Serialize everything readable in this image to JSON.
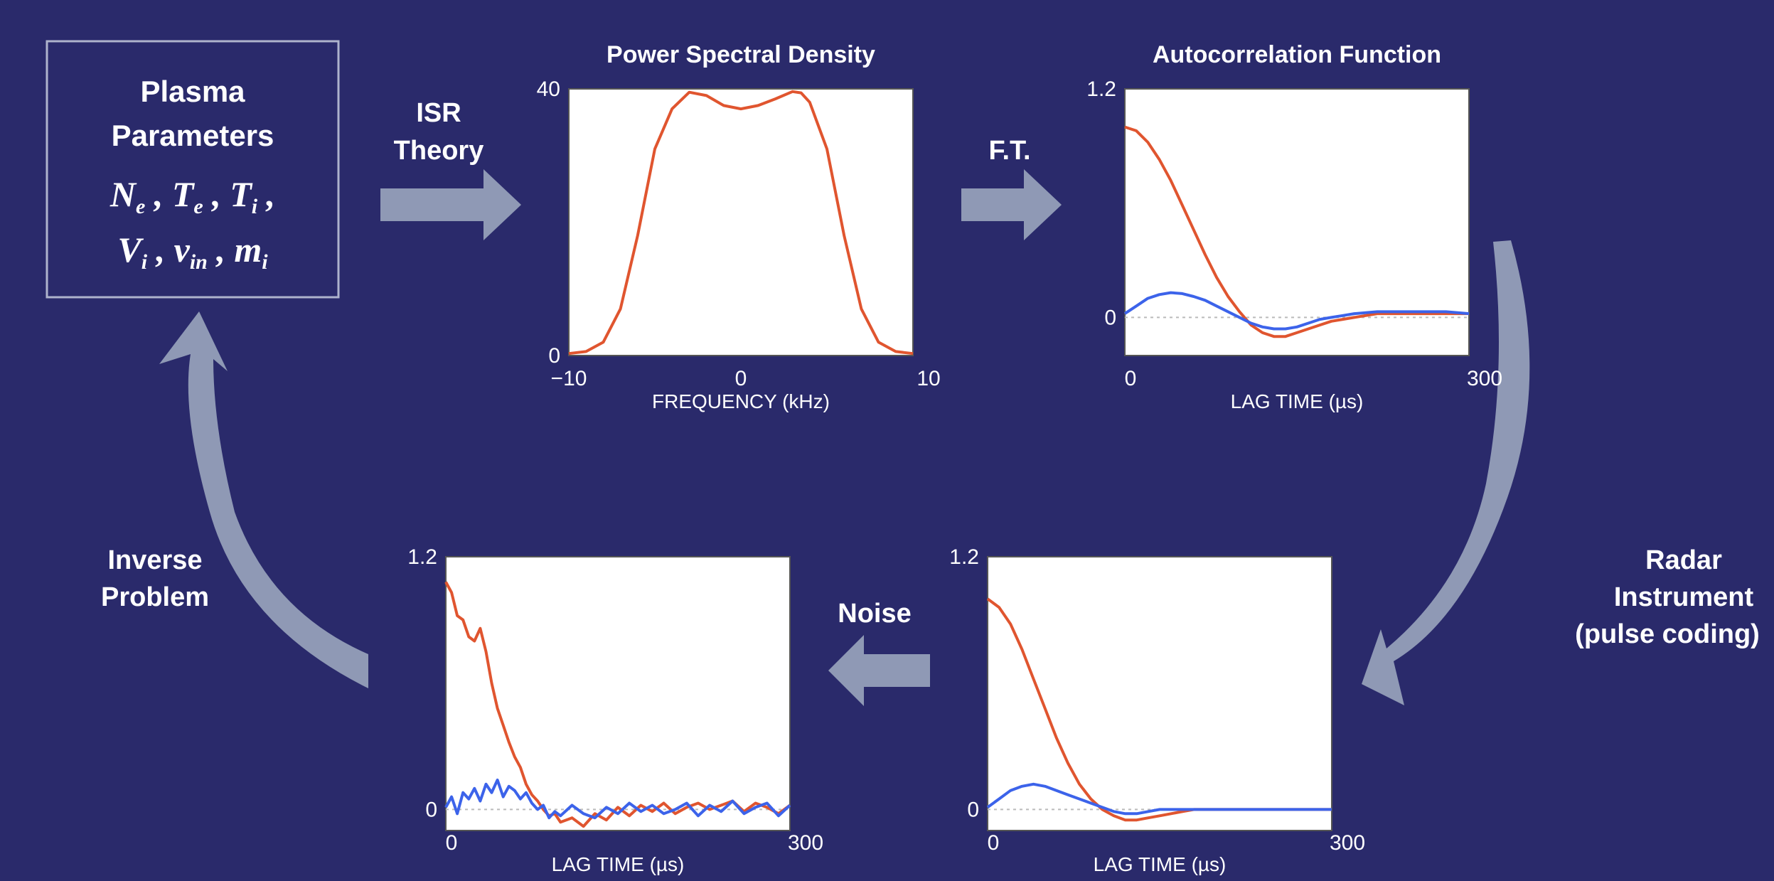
{
  "colors": {
    "background": "#2a2a6b",
    "arrow": "#8f99b5",
    "real_part": "#e0552f",
    "imag_part": "#3c63ea",
    "zero_line": "#bbbbbb",
    "plot_bg": "#ffffff",
    "text": "#ffffff"
  },
  "params_box": {
    "title_line1": "Plasma",
    "title_line2": "Parameters"
  },
  "labels": {
    "isr_theory_line1": "ISR",
    "isr_theory_line2": "Theory",
    "ft": "F.T.",
    "radar_line1": "Radar",
    "radar_line2": "Instrument",
    "radar_line3": "(pulse coding)",
    "noise": "Noise",
    "inverse_line1": "Inverse",
    "inverse_line2": "Problem"
  },
  "arrow_icons": [
    "arrow-right-icon",
    "arrow-right-icon",
    "curved-arrow-down-icon",
    "arrow-left-icon",
    "curved-arrow-up-icon"
  ],
  "chart_data": [
    {
      "id": "psd",
      "type": "line",
      "title": "Power Spectral Density",
      "xlabel": "FREQUENCY (kHz)",
      "ylabel": "",
      "xlim": [
        -10,
        10
      ],
      "ylim": [
        0,
        40
      ],
      "xticks": [
        "−10",
        "0",
        "10"
      ],
      "yticks": [
        "0",
        "40"
      ],
      "series": [
        {
          "color": "real",
          "x": [
            -10,
            -9,
            -8,
            -7,
            -6,
            -5,
            -4,
            -3,
            -2,
            -1,
            0,
            1,
            2,
            3,
            3.5,
            4,
            5,
            6,
            7,
            8,
            9,
            10
          ],
          "y": [
            0.3,
            0.6,
            2,
            7,
            18,
            31,
            37,
            39.5,
            39,
            37.5,
            37,
            37.5,
            38.5,
            39.6,
            39.4,
            38,
            31,
            18,
            7,
            2,
            0.6,
            0.3
          ]
        }
      ]
    },
    {
      "id": "acf",
      "type": "line",
      "title": "Autocorrelation Function",
      "xlabel": "LAG TIME (µs)",
      "ylabel": "",
      "xlim": [
        0,
        300
      ],
      "ylim": [
        -0.2,
        1.2
      ],
      "xticks": [
        "0",
        "300"
      ],
      "yticks": [
        "0",
        "1.2"
      ],
      "zero_line": true,
      "series": [
        {
          "color": "real",
          "x": [
            0,
            10,
            20,
            30,
            40,
            50,
            60,
            70,
            80,
            90,
            100,
            110,
            120,
            130,
            140,
            150,
            160,
            170,
            180,
            190,
            200,
            220,
            240,
            260,
            280,
            300
          ],
          "y": [
            1.0,
            0.98,
            0.92,
            0.83,
            0.72,
            0.59,
            0.46,
            0.33,
            0.21,
            0.11,
            0.03,
            -0.04,
            -0.08,
            -0.1,
            -0.1,
            -0.08,
            -0.06,
            -0.04,
            -0.02,
            -0.01,
            0.0,
            0.02,
            0.02,
            0.02,
            0.02,
            0.02
          ]
        },
        {
          "color": "imag",
          "x": [
            0,
            10,
            20,
            30,
            40,
            50,
            60,
            70,
            80,
            90,
            100,
            110,
            120,
            130,
            140,
            150,
            160,
            170,
            180,
            190,
            200,
            220,
            240,
            260,
            280,
            300
          ],
          "y": [
            0.02,
            0.06,
            0.1,
            0.12,
            0.13,
            0.125,
            0.11,
            0.09,
            0.06,
            0.03,
            0.0,
            -0.03,
            -0.05,
            -0.06,
            -0.06,
            -0.05,
            -0.03,
            -0.01,
            0.0,
            0.01,
            0.02,
            0.03,
            0.03,
            0.03,
            0.03,
            0.02
          ]
        }
      ]
    },
    {
      "id": "acf_radar",
      "type": "line",
      "title": "",
      "xlabel": "LAG TIME (µs)",
      "ylabel": "",
      "xlim": [
        0,
        300
      ],
      "ylim": [
        -0.1,
        1.2
      ],
      "xticks": [
        "0",
        "300"
      ],
      "yticks": [
        "0",
        "1.2"
      ],
      "zero_line": true,
      "series": [
        {
          "color": "real",
          "x": [
            0,
            10,
            20,
            30,
            40,
            50,
            60,
            70,
            80,
            90,
            100,
            110,
            120,
            130,
            140,
            150,
            160,
            170,
            180,
            190,
            200,
            220,
            240,
            260,
            280,
            300
          ],
          "y": [
            1.0,
            0.96,
            0.88,
            0.76,
            0.62,
            0.48,
            0.34,
            0.22,
            0.12,
            0.05,
            0.0,
            -0.03,
            -0.05,
            -0.05,
            -0.04,
            -0.03,
            -0.02,
            -0.01,
            0.0,
            0.0,
            0.0,
            0.0,
            0.0,
            0.0,
            0.0,
            0.0
          ]
        },
        {
          "color": "imag",
          "x": [
            0,
            10,
            20,
            30,
            40,
            50,
            60,
            70,
            80,
            90,
            100,
            110,
            120,
            130,
            140,
            150,
            160,
            170,
            180,
            190,
            200,
            220,
            240,
            260,
            280,
            300
          ],
          "y": [
            0.01,
            0.05,
            0.09,
            0.11,
            0.12,
            0.11,
            0.09,
            0.07,
            0.05,
            0.03,
            0.01,
            -0.01,
            -0.02,
            -0.02,
            -0.01,
            0.0,
            0.0,
            0.0,
            0.0,
            0.0,
            0.0,
            0.0,
            0.0,
            0.0,
            0.0,
            0.0
          ]
        }
      ]
    },
    {
      "id": "acf_noisy",
      "type": "line",
      "title": "",
      "xlabel": "LAG TIME (µs)",
      "ylabel": "",
      "xlim": [
        0,
        300
      ],
      "ylim": [
        -0.1,
        1.2
      ],
      "xticks": [
        "0",
        "300"
      ],
      "yticks": [
        "0",
        "1.2"
      ],
      "zero_line": true,
      "series": [
        {
          "color": "real",
          "x": [
            0,
            5,
            10,
            15,
            20,
            25,
            30,
            35,
            40,
            45,
            50,
            55,
            60,
            65,
            70,
            75,
            80,
            85,
            90,
            95,
            100,
            110,
            120,
            130,
            140,
            150,
            160,
            170,
            180,
            190,
            200,
            210,
            220,
            230,
            240,
            250,
            260,
            270,
            280,
            290,
            300
          ],
          "y": [
            1.08,
            1.03,
            0.92,
            0.9,
            0.82,
            0.8,
            0.86,
            0.75,
            0.6,
            0.48,
            0.4,
            0.32,
            0.25,
            0.2,
            0.12,
            0.07,
            0.04,
            0.0,
            -0.03,
            -0.02,
            -0.06,
            -0.04,
            -0.08,
            -0.02,
            -0.05,
            0.01,
            -0.03,
            0.02,
            -0.01,
            0.03,
            -0.02,
            0.01,
            0.03,
            0.0,
            0.02,
            0.04,
            -0.01,
            0.03,
            0.01,
            -0.02,
            0.02
          ]
        },
        {
          "color": "imag",
          "x": [
            0,
            5,
            10,
            15,
            20,
            25,
            30,
            35,
            40,
            45,
            50,
            55,
            60,
            65,
            70,
            75,
            80,
            85,
            90,
            95,
            100,
            110,
            120,
            130,
            140,
            150,
            160,
            170,
            180,
            190,
            200,
            210,
            220,
            230,
            240,
            250,
            260,
            270,
            280,
            290,
            300
          ],
          "y": [
            0.01,
            0.06,
            -0.02,
            0.08,
            0.05,
            0.1,
            0.04,
            0.12,
            0.08,
            0.14,
            0.06,
            0.11,
            0.09,
            0.05,
            0.08,
            0.03,
            0.0,
            0.02,
            -0.04,
            -0.01,
            -0.03,
            0.02,
            -0.02,
            -0.04,
            0.01,
            -0.02,
            0.03,
            -0.01,
            0.02,
            -0.02,
            0.0,
            0.03,
            -0.03,
            0.02,
            -0.01,
            0.04,
            -0.02,
            0.01,
            0.03,
            -0.03,
            0.02
          ]
        }
      ]
    }
  ]
}
